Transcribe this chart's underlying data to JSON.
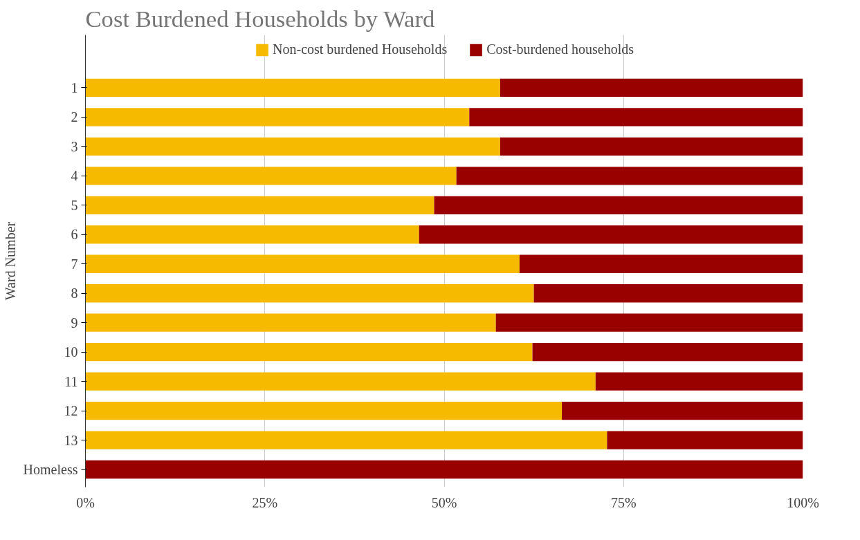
{
  "chart_data": {
    "type": "bar",
    "orientation": "horizontal",
    "stacked": true,
    "title": "Cost Burdened Households by Ward",
    "ylabel": "Ward Number",
    "categories": [
      "1",
      "2",
      "3",
      "4",
      "5",
      "6",
      "7",
      "8",
      "9",
      "10",
      "11",
      "12",
      "13",
      "Homeless"
    ],
    "series": [
      {
        "name": "Non-cost burdened Households",
        "color": "#f6bb00",
        "values": [
          57.8,
          53.5,
          57.8,
          51.7,
          48.6,
          46.5,
          60.5,
          62.5,
          57.2,
          62.3,
          71.1,
          66.4,
          72.7,
          0
        ]
      },
      {
        "name": "Cost-burdened households",
        "color": "#990000",
        "values": [
          42.2,
          46.5,
          42.2,
          48.3,
          51.4,
          53.5,
          39.5,
          37.5,
          42.8,
          37.7,
          28.9,
          33.6,
          27.3,
          100
        ]
      }
    ],
    "xlim": [
      0,
      100
    ],
    "xticks": [
      {
        "value": 0,
        "label": "0%"
      },
      {
        "value": 25,
        "label": "25%"
      },
      {
        "value": 50,
        "label": "50%"
      },
      {
        "value": 75,
        "label": "75%"
      },
      {
        "value": 100,
        "label": "100%"
      }
    ],
    "grid": "x",
    "legend": "top"
  }
}
